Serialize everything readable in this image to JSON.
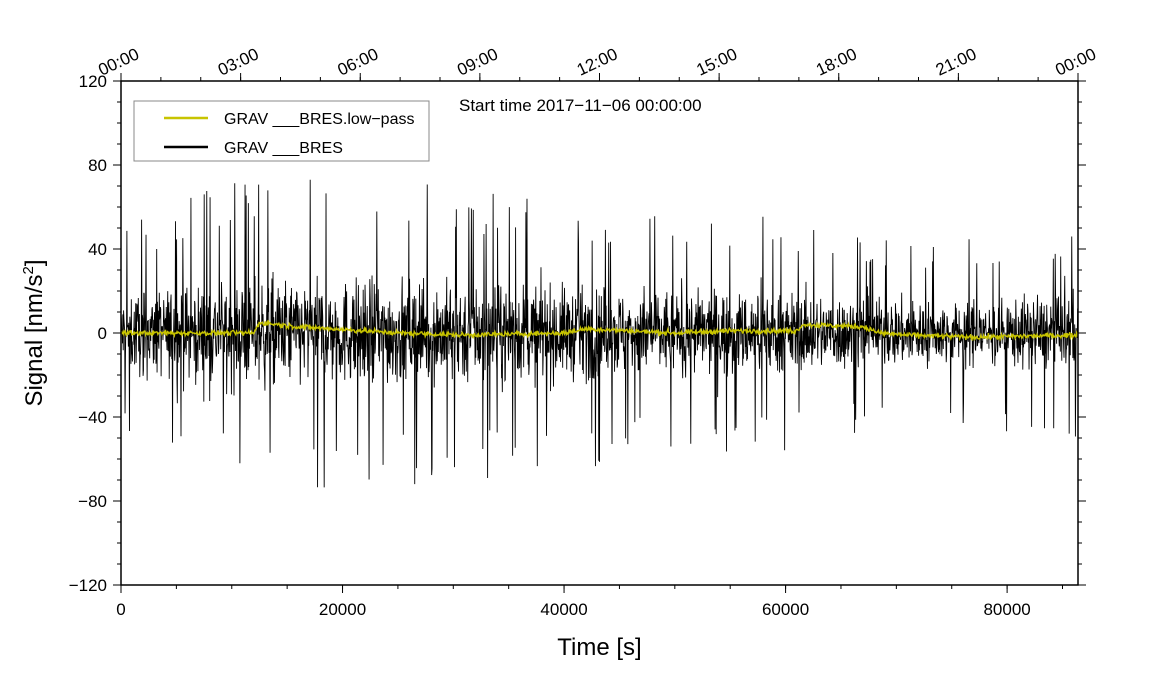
{
  "chart_data": {
    "type": "line",
    "title": "",
    "annotation": "Start time 2017−11−06 00:00:00",
    "xlabel": "Time [s]",
    "ylabel": "Signal [nm/s",
    "ylabel_superscript": "2",
    "ylabel_suffix": "]",
    "xlim": [
      0,
      86400
    ],
    "ylim": [
      -120,
      120
    ],
    "x_ticks": [
      0,
      20000,
      40000,
      60000,
      80000
    ],
    "x_tick_labels": [
      "0",
      "20000",
      "40000",
      "60000",
      "80000"
    ],
    "y_ticks": [
      -120,
      -80,
      -40,
      0,
      40,
      80,
      120
    ],
    "y_tick_labels": [
      "−120",
      "−80",
      "−40",
      "0",
      "40",
      "80",
      "120"
    ],
    "top_axis": {
      "ticks_seconds": [
        0,
        10800,
        21600,
        32400,
        43200,
        54000,
        64800,
        75600,
        86400
      ],
      "labels": [
        "00:00",
        "03:00",
        "06:00",
        "09:00",
        "12:00",
        "15:00",
        "18:00",
        "21:00",
        "00:00"
      ]
    },
    "grid": false,
    "legend_position": "top-left",
    "series": [
      {
        "name": "GRAV ___BRES.low−pass",
        "color": "#c8c400",
        "profile": [
          [
            0,
            0
          ],
          [
            12000,
            0
          ],
          [
            12500,
            5
          ],
          [
            16000,
            3
          ],
          [
            25000,
            0
          ],
          [
            31000,
            -1
          ],
          [
            40000,
            0
          ],
          [
            42000,
            2
          ],
          [
            50000,
            0
          ],
          [
            55000,
            1
          ],
          [
            61000,
            1
          ],
          [
            61500,
            4
          ],
          [
            67000,
            3
          ],
          [
            68500,
            0
          ],
          [
            71000,
            -1
          ],
          [
            77000,
            -2
          ],
          [
            86400,
            -1
          ]
        ]
      },
      {
        "name": "GRAV ___BRES",
        "color": "#000000",
        "envelope_amplitude": [
          [
            0,
            32
          ],
          [
            5000,
            38
          ],
          [
            10000,
            42
          ],
          [
            15000,
            44
          ],
          [
            30000,
            42
          ],
          [
            40000,
            38
          ],
          [
            50000,
            36
          ],
          [
            60000,
            33
          ],
          [
            70000,
            28
          ],
          [
            75000,
            26
          ],
          [
            80000,
            28
          ],
          [
            86400,
            34
          ]
        ]
      }
    ]
  }
}
